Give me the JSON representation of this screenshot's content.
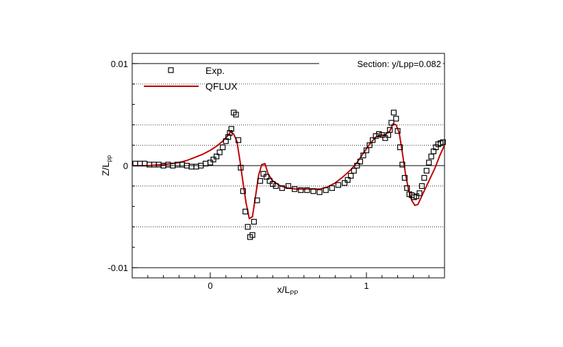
{
  "chart_data": {
    "type": "line",
    "annotation": "Section: y/Lpp=0.082",
    "xlabel": "x/L",
    "xlabel_sub": "PP",
    "ylabel": "Z/L",
    "ylabel_sub": "pp",
    "xlim": [
      -0.5,
      1.5
    ],
    "ylim": [
      -0.011,
      0.011
    ],
    "xticks": [
      {
        "value": 0,
        "label": "0"
      },
      {
        "value": 1,
        "label": "1"
      }
    ],
    "yticks": [
      {
        "value": 0.01,
        "label": "0.01"
      },
      {
        "value": 0,
        "label": "0"
      },
      {
        "value": -0.01,
        "label": "-0.01"
      }
    ],
    "hgrid": [
      0.01,
      0.008,
      0.004,
      0.002,
      0,
      -0.002,
      -0.006,
      -0.01
    ],
    "colors": {
      "exp": "#000000",
      "qflux": "#c00000"
    },
    "legend": [
      {
        "label": "Exp.",
        "marker": "square"
      },
      {
        "label": "QFLUX",
        "marker": "line"
      }
    ],
    "series": [
      {
        "name": "Exp.",
        "style": "markers",
        "x": [
          -0.48,
          -0.45,
          -0.42,
          -0.39,
          -0.36,
          -0.33,
          -0.3,
          -0.27,
          -0.24,
          -0.21,
          -0.18,
          -0.15,
          -0.12,
          -0.09,
          -0.06,
          -0.03,
          0.0,
          0.02,
          0.04,
          0.06,
          0.08,
          0.1,
          0.115,
          0.125,
          0.135,
          0.15,
          0.165,
          0.18,
          0.195,
          0.21,
          0.225,
          0.24,
          0.255,
          0.27,
          0.28,
          0.3,
          0.32,
          0.34,
          0.36,
          0.38,
          0.4,
          0.42,
          0.46,
          0.5,
          0.54,
          0.58,
          0.62,
          0.66,
          0.7,
          0.74,
          0.78,
          0.82,
          0.86,
          0.88,
          0.9,
          0.92,
          0.94,
          0.96,
          0.98,
          1.0,
          1.02,
          1.04,
          1.06,
          1.08,
          1.1,
          1.12,
          1.14,
          1.15,
          1.16,
          1.175,
          1.19,
          1.2,
          1.215,
          1.23,
          1.245,
          1.26,
          1.275,
          1.29,
          1.305,
          1.32,
          1.34,
          1.355,
          1.37,
          1.385,
          1.4,
          1.415,
          1.43,
          1.445,
          1.46,
          1.475,
          1.49
        ],
        "y": [
          0.0002,
          0.0002,
          0.0002,
          0.0001,
          0.0001,
          0.0001,
          0.0,
          0.0001,
          0.0,
          0.0001,
          0.0001,
          0.0,
          -0.0001,
          -0.0001,
          0.0,
          0.0002,
          0.0003,
          0.0006,
          0.0009,
          0.0013,
          0.0018,
          0.0024,
          0.0028,
          0.0032,
          0.0036,
          0.0052,
          0.005,
          0.0025,
          -0.0002,
          -0.0025,
          -0.0045,
          -0.006,
          -0.007,
          -0.0068,
          -0.0055,
          -0.0034,
          -0.0015,
          -0.0008,
          -0.0011,
          -0.0015,
          -0.0018,
          -0.002,
          -0.0022,
          -0.002,
          -0.0023,
          -0.0024,
          -0.0024,
          -0.0025,
          -0.0026,
          -0.0024,
          -0.0022,
          -0.0019,
          -0.0017,
          -0.0014,
          -0.001,
          -0.0005,
          0.0,
          0.0004,
          0.001,
          0.0015,
          0.002,
          0.0025,
          0.0029,
          0.0031,
          0.003,
          0.0027,
          0.003,
          0.0035,
          0.0042,
          0.0052,
          0.0046,
          0.0034,
          0.0018,
          0.0001,
          -0.0012,
          -0.0022,
          -0.0028,
          -0.0029,
          -0.0031,
          -0.003,
          -0.0027,
          -0.002,
          -0.0012,
          -0.0005,
          0.0003,
          0.0009,
          0.0014,
          0.0018,
          0.0021,
          0.0022,
          0.0023
        ]
      },
      {
        "name": "QFLUX",
        "style": "line",
        "x": [
          -0.5,
          -0.4,
          -0.3,
          -0.2,
          -0.15,
          -0.1,
          -0.05,
          0.0,
          0.04,
          0.08,
          0.11,
          0.13,
          0.15,
          0.17,
          0.19,
          0.21,
          0.23,
          0.25,
          0.27,
          0.29,
          0.31,
          0.33,
          0.35,
          0.37,
          0.4,
          0.45,
          0.5,
          0.55,
          0.6,
          0.65,
          0.7,
          0.75,
          0.8,
          0.85,
          0.9,
          0.94,
          0.98,
          1.02,
          1.06,
          1.09,
          1.12,
          1.15,
          1.17,
          1.19,
          1.21,
          1.23,
          1.25,
          1.27,
          1.29,
          1.31,
          1.33,
          1.36,
          1.4,
          1.44,
          1.47,
          1.5
        ],
        "y": [
          0.0,
          0.0,
          0.0001,
          0.0003,
          0.0005,
          0.0008,
          0.0011,
          0.0015,
          0.0019,
          0.0024,
          0.0029,
          0.0033,
          0.0031,
          0.0024,
          0.0005,
          -0.0017,
          -0.0037,
          -0.0052,
          -0.005,
          -0.003,
          -0.0009,
          0.0001,
          0.0002,
          -0.0008,
          -0.0015,
          -0.002,
          -0.0022,
          -0.0023,
          -0.0023,
          -0.0023,
          -0.0023,
          -0.0021,
          -0.0017,
          -0.0011,
          -0.0004,
          0.0003,
          0.0012,
          0.0021,
          0.0028,
          0.003,
          0.003,
          0.0034,
          0.0041,
          0.004,
          0.0032,
          0.0013,
          -0.0008,
          -0.0024,
          -0.0034,
          -0.0039,
          -0.0038,
          -0.0028,
          -0.0015,
          -0.0002,
          0.001,
          0.002
        ]
      }
    ]
  }
}
